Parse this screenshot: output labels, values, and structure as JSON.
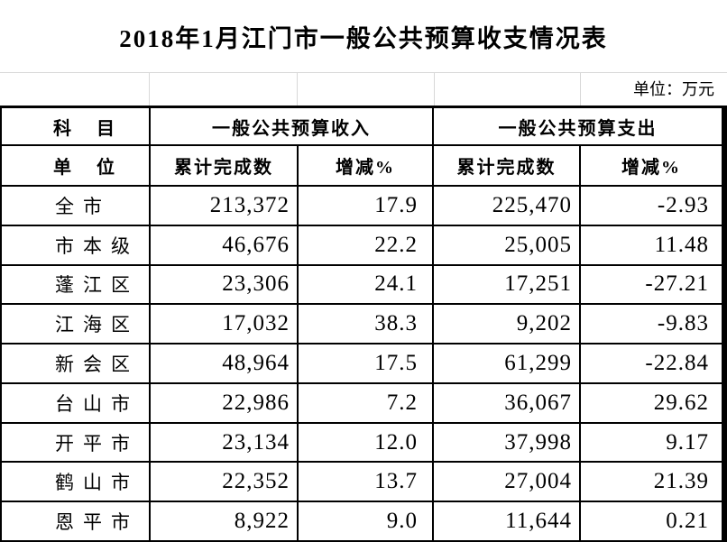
{
  "title": "2018年1月江门市一般公共预算收支情况表",
  "unit_note": "单位：万元",
  "colors": {
    "background": "#ffffff",
    "text": "#000000",
    "table_border": "#000000",
    "light_gridline": "#d8d8d8"
  },
  "table": {
    "header": {
      "subject": "科目",
      "unit": "单位",
      "income_group": "一般公共预算收入",
      "expenditure_group": "一般公共预算支出",
      "income_cumulative": "累计完成数",
      "income_change": "增减%",
      "expenditure_cumulative": "累计完成数",
      "expenditure_change": "增减%"
    },
    "rows": [
      {
        "name": "全市",
        "income": "213,372",
        "income_change": "17.9",
        "expenditure": "225,470",
        "expenditure_change": "-2.93"
      },
      {
        "name": "市本级",
        "income": "46,676",
        "income_change": "22.2",
        "expenditure": "25,005",
        "expenditure_change": "11.48"
      },
      {
        "name": "蓬江区",
        "income": "23,306",
        "income_change": "24.1",
        "expenditure": "17,251",
        "expenditure_change": "-27.21"
      },
      {
        "name": "江海区",
        "income": "17,032",
        "income_change": "38.3",
        "expenditure": "9,202",
        "expenditure_change": "-9.83"
      },
      {
        "name": "新会区",
        "income": "48,964",
        "income_change": "17.5",
        "expenditure": "61,299",
        "expenditure_change": "-22.84"
      },
      {
        "name": "台山市",
        "income": "22,986",
        "income_change": "7.2",
        "expenditure": "36,067",
        "expenditure_change": "29.62"
      },
      {
        "name": "开平市",
        "income": "23,134",
        "income_change": "12.0",
        "expenditure": "37,998",
        "expenditure_change": "9.17"
      },
      {
        "name": "鹤山市",
        "income": "22,352",
        "income_change": "13.7",
        "expenditure": "27,004",
        "expenditure_change": "21.39"
      },
      {
        "name": "恩平市",
        "income": "8,922",
        "income_change": "9.0",
        "expenditure": "11,644",
        "expenditure_change": "0.21"
      }
    ]
  }
}
